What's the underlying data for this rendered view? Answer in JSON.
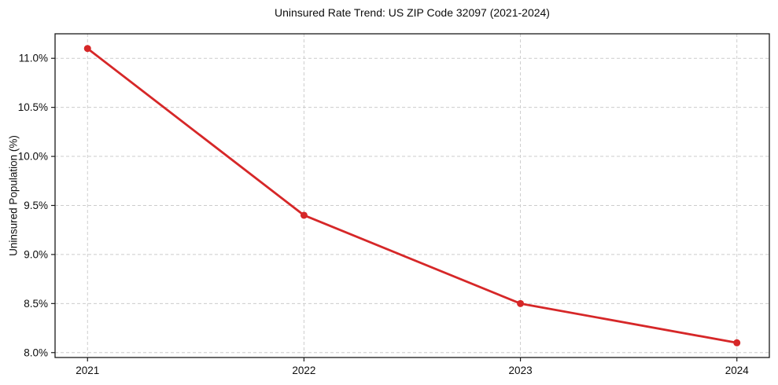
{
  "chart_data": {
    "type": "line",
    "title": "Uninsured Rate Trend: US ZIP Code 32097 (2021-2024)",
    "xlabel": "",
    "ylabel": "Uninsured Population (%)",
    "x": [
      2021,
      2022,
      2023,
      2024
    ],
    "values": [
      11.1,
      9.4,
      8.5,
      8.1
    ],
    "xtick_values": [
      2021,
      2022,
      2023,
      2024
    ],
    "xtick_labels": [
      "2021",
      "2022",
      "2023",
      "2024"
    ],
    "ytick_values": [
      8.0,
      8.5,
      9.0,
      9.5,
      10.0,
      10.5,
      11.0
    ],
    "ytick_labels": [
      "8.0%",
      "8.5%",
      "9.0%",
      "9.5%",
      "10.0%",
      "10.5%",
      "11.0%"
    ],
    "xlim": [
      2020.85,
      2024.15
    ],
    "ylim": [
      7.95,
      11.25
    ],
    "grid": true,
    "grid_style": "dashed",
    "legend_position": "none",
    "colors": {
      "line": "#d62728",
      "marker": "#d62728",
      "grid": "#cccccc",
      "spine": "#1a1a1a",
      "tick": "#1a1a1a",
      "text": "#0d0d0d",
      "background": "#ffffff"
    }
  }
}
